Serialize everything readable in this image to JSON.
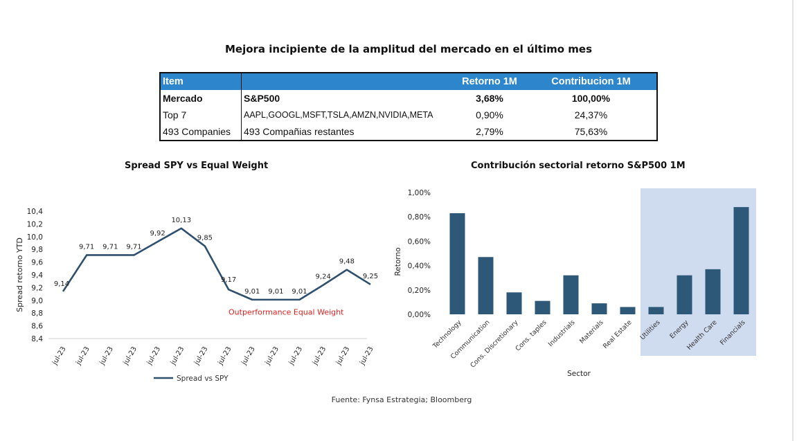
{
  "title": "Mejora incipiente de la amplitud del mercado en el último mes",
  "table": {
    "headers": [
      "Item",
      "",
      "Retorno 1M",
      "Contribucion 1M"
    ],
    "rows": [
      [
        "Mercado",
        "S&P500",
        "3,68%",
        "100,00%"
      ],
      [
        "Top 7",
        "AAPL,GOOGL,MSFT,TSLA,AMZN,NVIDIA,META",
        "0,90%",
        "24,37%"
      ],
      [
        "493 Companies",
        "493 Compañias restantes",
        "2,79%",
        "75,63%"
      ]
    ]
  },
  "chart_data": [
    {
      "type": "line",
      "title": "Spread SPY vs Equal Weight",
      "ylabel": "Spread retorno YTD",
      "x": [
        "jul-23",
        "jul-23",
        "jul-23",
        "jul-23",
        "jul-23",
        "jul-23",
        "jul-23",
        "jul-23",
        "jul-23",
        "jul-23",
        "jul-23",
        "jul-23",
        "jul-23",
        "jul-23"
      ],
      "series": [
        {
          "name": "Spread vs SPY",
          "values": [
            9.14,
            9.71,
            9.71,
            9.71,
            9.92,
            10.13,
            9.85,
            9.17,
            9.01,
            9.01,
            9.01,
            9.24,
            9.48,
            9.25
          ]
        }
      ],
      "data_labels": [
        "9,14",
        "9,71",
        "9,71",
        "9,71",
        "9,92",
        "10,13",
        "9,85",
        "9,17",
        "9,01",
        "9,01",
        "9,01",
        "9,24",
        "9,48",
        "9,25"
      ],
      "ylim": [
        8.4,
        10.4
      ],
      "yticks": [
        8.4,
        8.6,
        8.8,
        9.0,
        9.2,
        9.4,
        9.6,
        9.8,
        10.0,
        10.2,
        10.4
      ],
      "ytick_labels": [
        "8,4",
        "8,6",
        "8,8",
        "9,0",
        "9,2",
        "9,4",
        "9,6",
        "9,8",
        "10,0",
        "10,2",
        "10,4"
      ],
      "annotation": "Outperformance Equal Weight",
      "legend_position": "bottom",
      "color": "#2e4f6e",
      "annotation_color": "#e0201f"
    },
    {
      "type": "bar",
      "title": "Contribución sectorial retorno S&P500 1M",
      "xlabel": "Sector",
      "ylabel": "Retorno",
      "categories": [
        "Technology",
        "Communication",
        "Cons. Discretionary",
        "Cons. taples",
        "Industrials",
        "Materials",
        "Real Estate",
        "Utilities",
        "Energy",
        "Health Care",
        "Financials"
      ],
      "values": [
        0.83,
        0.47,
        0.18,
        0.11,
        0.32,
        0.09,
        0.06,
        0.06,
        0.32,
        0.37,
        0.88
      ],
      "ylim": [
        0,
        1.0
      ],
      "yticks": [
        0,
        0.2,
        0.4,
        0.6,
        0.8,
        1.0
      ],
      "ytick_labels": [
        "0,00%",
        "0,20%",
        "0,40%",
        "0,60%",
        "0,80%",
        "1,00%"
      ],
      "highlight_categories": [
        "Utilities",
        "Energy",
        "Health Care",
        "Financials"
      ],
      "color": "#2e5878",
      "highlight_color": "#cfdbef"
    }
  ],
  "source": "Fuente: Fynsa Estrategia; Bloomberg"
}
